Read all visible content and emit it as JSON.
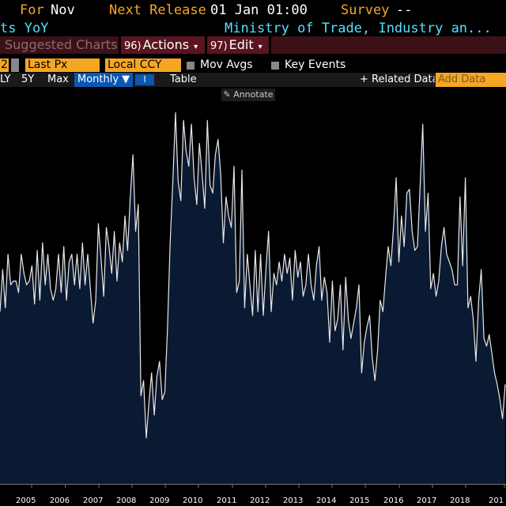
{
  "header": {
    "for_label": "For",
    "for_value": "Nov",
    "next_release_label": "Next Release",
    "next_release_value": "01 Jan 01:00",
    "survey_label": "Survey",
    "survey_value": "--",
    "series_title_fragment": "ts YoY",
    "source": "Ministry of Trade, Industry an..."
  },
  "menu": {
    "suggested_charts": "Suggested Charts",
    "actions_num": "96)",
    "actions_label": "Actions",
    "edit_num": "97)",
    "edit_label": "Edit"
  },
  "controls": {
    "field_fragment": "2",
    "last_px": "Last Px",
    "currency": "Local CCY",
    "mov_avgs": "Mov Avgs",
    "key_events": "Key Events"
  },
  "toolbar": {
    "range_1y": "LY",
    "range_5y": "5Y",
    "range_max": "Max",
    "frequency": "Monthly ▼",
    "table": "Table",
    "related_data": "+ Related Data",
    "add_data": "Add Data"
  },
  "annotate_label": "Annotate",
  "colors": {
    "accent_orange": "#f5a623",
    "title_cyan": "#52e0ff",
    "menu_red": "#5a1520",
    "area_fill": "#0b1a33",
    "line": "#e8e8e8"
  },
  "chart_data": {
    "type": "area",
    "x_ticks": [
      "2005",
      "2006",
      "2007",
      "2008",
      "2009",
      "2010",
      "2011",
      "2012",
      "2013",
      "2014",
      "2015",
      "2016",
      "2017",
      "2018",
      "201"
    ],
    "x_tick_fractions": [
      0.0625,
      0.1292,
      0.1953,
      0.2609,
      0.3266,
      0.3922,
      0.4594,
      0.525,
      0.5906,
      0.6563,
      0.7219,
      0.7891,
      0.8547,
      0.9203,
      0.9969
    ],
    "y_range": [
      0,
      100
    ],
    "values": [
      45,
      56,
      46,
      60,
      52,
      53,
      53,
      50,
      60,
      55,
      52,
      53,
      57,
      47,
      61,
      48,
      63,
      52,
      60,
      51,
      48,
      51,
      60,
      50,
      62,
      48,
      58,
      60,
      52,
      60,
      51,
      63,
      52,
      60,
      51,
      42,
      48,
      68,
      59,
      49,
      67,
      62,
      55,
      66,
      53,
      63,
      58,
      70,
      61,
      75,
      86,
      66,
      73,
      23,
      27,
      12,
      21,
      29,
      18,
      28,
      32,
      22,
      24,
      41,
      63,
      79,
      97,
      79,
      74,
      95,
      87,
      83,
      94,
      80,
      73,
      89,
      81,
      72,
      95,
      78,
      76,
      86,
      90,
      81,
      63,
      75,
      70,
      67,
      83,
      50,
      53,
      82,
      46,
      60,
      52,
      44,
      61,
      45,
      60,
      44,
      56,
      66,
      45,
      55,
      52,
      58,
      53,
      60,
      55,
      59,
      48,
      61,
      54,
      58,
      49,
      52,
      60,
      52,
      48,
      57,
      62,
      48,
      54,
      50,
      37,
      53,
      40,
      43,
      52,
      35,
      54,
      43,
      38,
      42,
      46,
      52,
      29,
      37,
      41,
      44,
      33,
      27,
      35,
      48,
      45,
      54,
      62,
      57,
      67,
      80,
      58,
      70,
      62,
      76,
      77,
      66,
      61,
      62,
      78,
      94,
      66,
      76,
      51,
      55,
      49,
      53,
      62,
      67,
      60,
      58,
      56,
      52,
      52,
      75,
      57,
      80,
      46,
      49,
      43,
      32,
      48,
      56,
      38,
      36,
      39,
      34,
      29,
      26,
      22,
      17,
      26
    ]
  }
}
